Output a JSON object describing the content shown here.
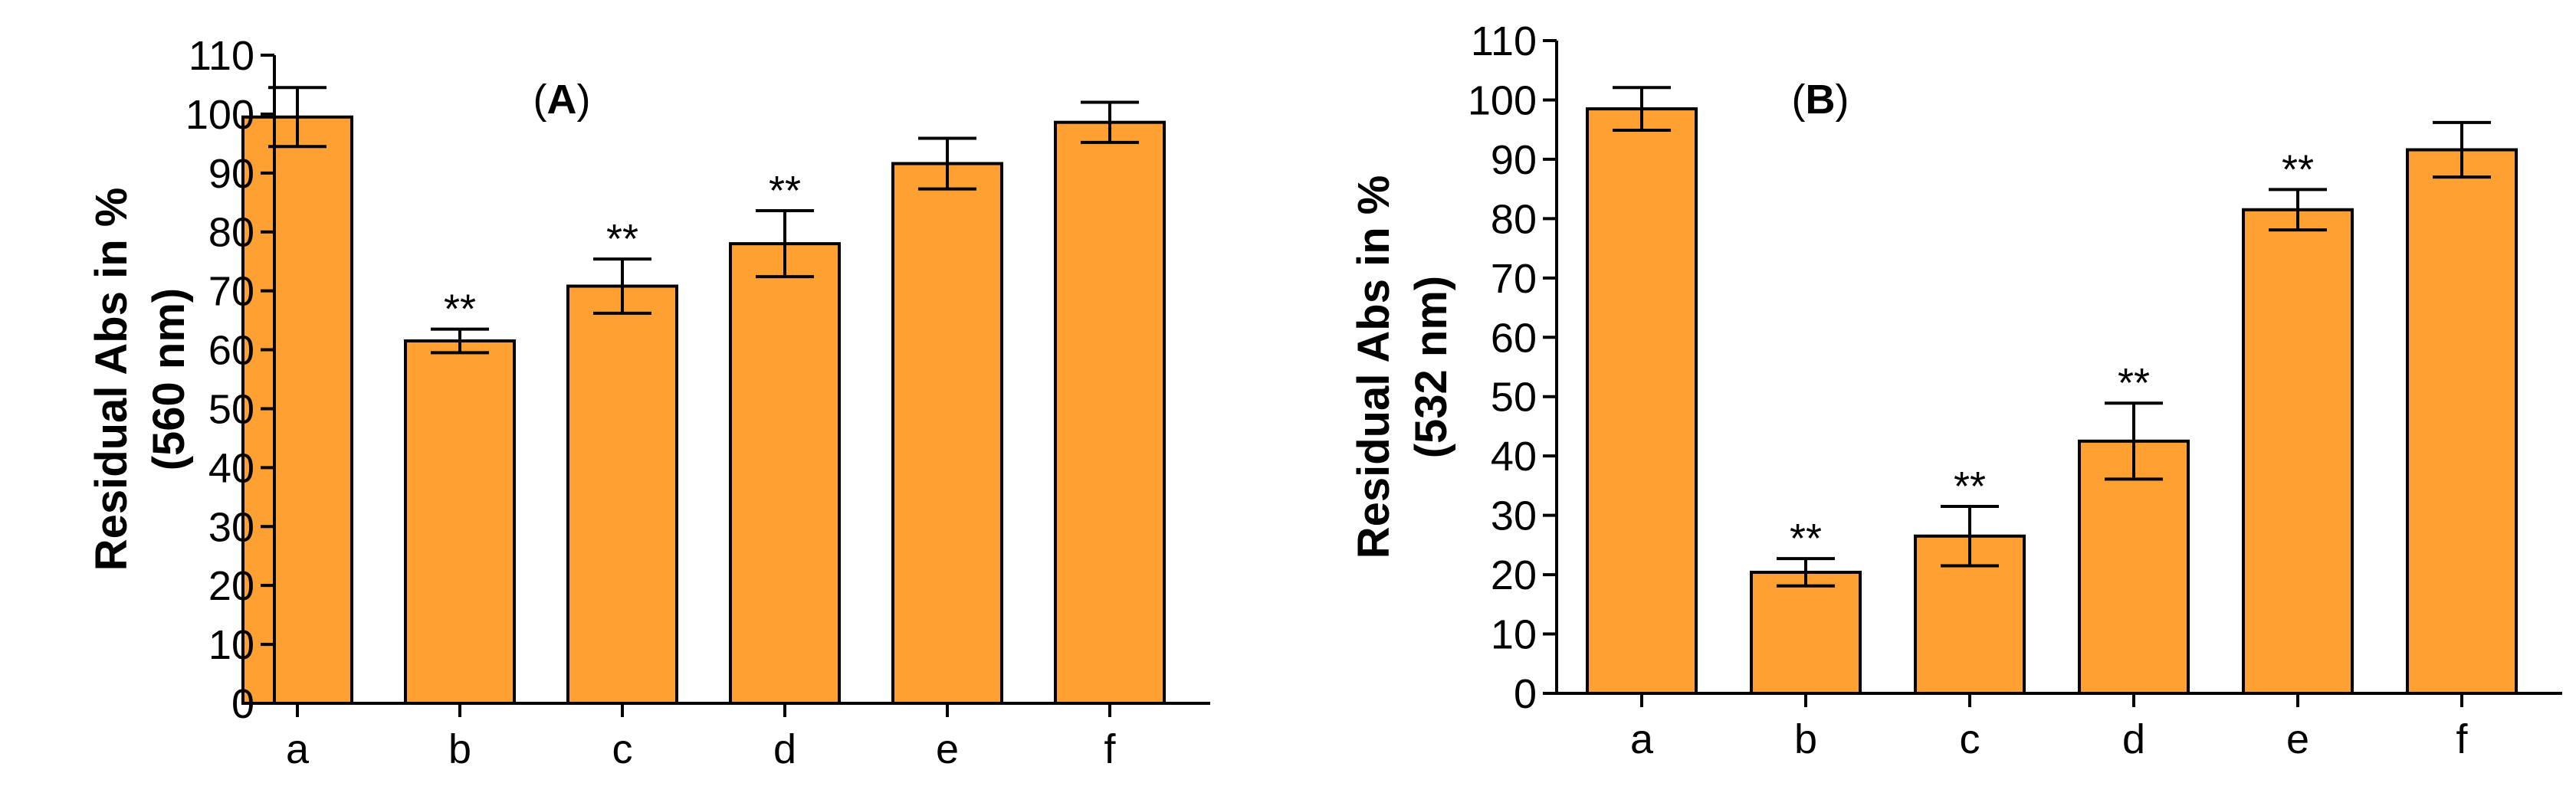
{
  "colors": {
    "bar_fill": "#FFA033",
    "bar_stroke": "#000000",
    "axis": "#000000"
  },
  "chart_data": [
    {
      "type": "bar",
      "panel_label_prefix": "(",
      "panel_label_letter": "A",
      "panel_label_suffix": ")",
      "title": "",
      "xlabel": "",
      "ylabel_line1": "Residual Abs in %",
      "ylabel_line2": "(560 nm)",
      "ylim": [
        0,
        110
      ],
      "yticks": [
        0,
        10,
        20,
        30,
        40,
        50,
        60,
        70,
        80,
        90,
        100,
        110
      ],
      "categories": [
        "a",
        "b",
        "c",
        "d",
        "e",
        "f"
      ],
      "values": [
        99.5,
        61.5,
        70.8,
        78,
        91.6,
        98.6
      ],
      "errors": [
        5,
        2,
        4.6,
        5.6,
        4.3,
        3.4
      ],
      "significance": [
        "",
        "**",
        "**",
        "**",
        "",
        ""
      ],
      "grid": false
    },
    {
      "type": "bar",
      "panel_label_prefix": "(",
      "panel_label_letter": "B",
      "panel_label_suffix": ")",
      "title": "",
      "xlabel": "",
      "ylabel_line1": "Residual Abs in %",
      "ylabel_line2": "(532 nm)",
      "ylim": [
        0,
        110
      ],
      "yticks": [
        0,
        10,
        20,
        30,
        40,
        50,
        60,
        70,
        80,
        90,
        100,
        110
      ],
      "categories": [
        "a",
        "b",
        "c",
        "d",
        "e",
        "f"
      ],
      "values": [
        98.5,
        20.4,
        26.5,
        42.5,
        81.5,
        91.6
      ],
      "errors": [
        3.6,
        2.3,
        5,
        6.4,
        3.4,
        4.6
      ],
      "significance": [
        "",
        "**",
        "**",
        "**",
        "**",
        ""
      ],
      "grid": false
    }
  ]
}
